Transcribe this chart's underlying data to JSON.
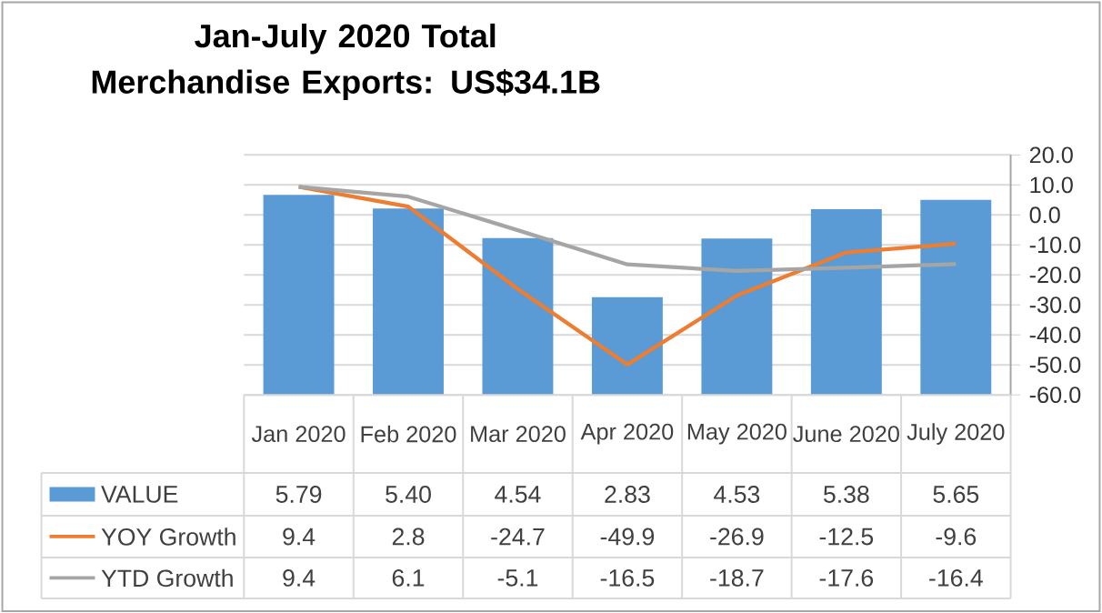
{
  "chart_data": {
    "type": "bar",
    "title": "Jan-July 2020 Total Merchandise Exports: US$34.1B",
    "categories": [
      "Jan 2020",
      "Feb 2020",
      "Mar 2020",
      "Apr 2020",
      "May 2020",
      "June 2020",
      "July 2020"
    ],
    "series": [
      {
        "name": "VALUE",
        "axis": "y2",
        "color": "#5b9bd5",
        "values": [
          5.79,
          5.4,
          4.54,
          2.83,
          4.53,
          5.38,
          5.65
        ],
        "value_labels": [
          "5.79",
          "5.40",
          "4.54",
          "2.83",
          "4.53",
          "5.38",
          "5.65"
        ]
      },
      {
        "name": "YOY Growth",
        "type": "line",
        "color": "#ed7d31",
        "values": [
          9.4,
          2.8,
          -24.7,
          -49.9,
          -26.9,
          -12.5,
          -9.6
        ],
        "value_labels": [
          "9.4",
          "2.8",
          "-24.7",
          "-49.9",
          "-26.9",
          "-12.5",
          "-9.6"
        ]
      },
      {
        "name": "YTD Growth",
        "type": "line",
        "color": "#a5a5a5",
        "values": [
          9.4,
          6.1,
          -5.1,
          -16.5,
          -18.7,
          -17.6,
          -16.4
        ],
        "value_labels": [
          "9.4",
          "6.1",
          "-5.1",
          "-16.5",
          "-18.7",
          "-17.6",
          "-16.4"
        ]
      }
    ],
    "ylim": [
      -60,
      20
    ],
    "yticks": [
      {
        "value": -60,
        "label": "-60.0"
      },
      {
        "value": -50,
        "label": "-50.0"
      },
      {
        "value": -40,
        "label": "-40.0"
      },
      {
        "value": -30,
        "label": "-30.0"
      },
      {
        "value": -20,
        "label": "-20.0"
      },
      {
        "value": -10,
        "label": "-10.0"
      },
      {
        "value": 0,
        "label": "0.0"
      },
      {
        "value": 10,
        "label": "10.0"
      },
      {
        "value": 20,
        "label": "20.0"
      }
    ],
    "grid": "y",
    "legend": "bottom",
    "marker": "none",
    "line_style": "solid",
    "tick_labels": "y"
  }
}
